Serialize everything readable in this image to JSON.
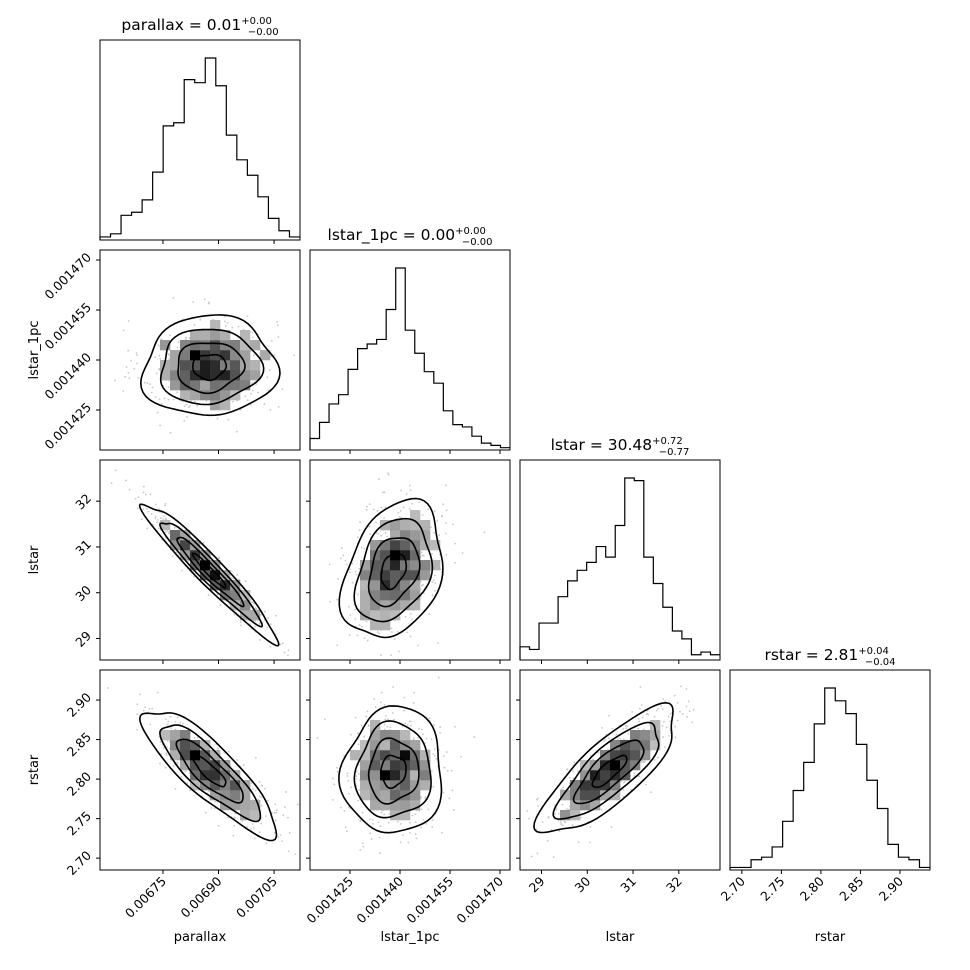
{
  "chart_data": {
    "type": "corner",
    "parameters": [
      {
        "name": "parallax",
        "range": [
          0.00658,
          0.00712
        ]
      },
      {
        "name": "lstar_1pc",
        "range": [
          0.001413,
          0.001473
        ]
      },
      {
        "name": "lstar",
        "range": [
          28.53,
          32.9
        ]
      },
      {
        "name": "rstar",
        "range": [
          2.685,
          2.938
        ]
      }
    ],
    "titles": [
      {
        "label": "parallax",
        "value": "0.01",
        "plus": "+0.00",
        "minus": "−0.00"
      },
      {
        "label": "lstar_1pc",
        "value": "0.00",
        "plus": "+0.00",
        "minus": "−0.00"
      },
      {
        "label": "lstar",
        "value": "30.48",
        "plus": "+0.72",
        "minus": "−0.77"
      },
      {
        "label": "rstar",
        "value": "2.81",
        "plus": "+0.04",
        "minus": "−0.04"
      }
    ],
    "axis_labels": [
      "parallax",
      "lstar_1pc",
      "lstar",
      "rstar"
    ],
    "ticks": [
      {
        "values": [
          0.00675,
          0.0069,
          0.00705
        ],
        "labels": [
          "0.00675",
          "0.00690",
          "0.00705"
        ]
      },
      {
        "values": [
          0.001425,
          0.00144,
          0.001455,
          0.00147
        ],
        "labels": [
          "0.001425",
          "0.001440",
          "0.001455",
          "0.001470"
        ]
      },
      {
        "values": [
          29,
          30,
          31,
          32
        ],
        "labels": [
          "29",
          "30",
          "31",
          "32"
        ]
      },
      {
        "values": [
          2.7,
          2.75,
          2.8,
          2.85,
          2.9
        ],
        "labels": [
          "2.70",
          "2.75",
          "2.80",
          "2.85",
          "2.90"
        ]
      }
    ],
    "histograms": [
      {
        "counts": [
          1,
          2,
          8,
          9,
          13,
          22,
          37,
          38,
          52,
          51,
          59,
          50,
          34,
          26,
          21,
          14,
          7,
          3,
          1
        ]
      },
      {
        "counts": [
          5,
          12,
          20,
          24,
          35,
          44,
          46,
          48,
          61,
          79,
          52,
          42,
          34,
          29,
          17,
          11,
          10,
          6,
          3,
          2,
          1
        ]
      },
      {
        "counts": [
          5,
          4,
          14,
          14,
          24,
          30,
          34,
          37,
          43,
          39,
          51,
          69,
          68,
          39,
          29,
          20,
          11,
          8,
          2,
          3,
          2
        ]
      },
      {
        "counts": [
          1,
          1,
          4,
          5,
          9,
          19,
          31,
          42,
          57,
          71,
          66,
          61,
          49,
          35,
          24,
          10,
          5,
          4,
          1
        ]
      }
    ],
    "correlations": [
      {
        "x": 0,
        "y": 1,
        "rho": 0.05
      },
      {
        "x": 0,
        "y": 2,
        "rho": -0.96
      },
      {
        "x": 1,
        "y": 2,
        "rho": 0.3
      },
      {
        "x": 0,
        "y": 3,
        "rho": -0.85
      },
      {
        "x": 1,
        "y": 3,
        "rho": 0.05
      },
      {
        "x": 2,
        "y": 3,
        "rho": 0.8
      }
    ],
    "center": [
      0.006875,
      0.001438,
      30.48,
      2.81
    ],
    "sigma": [
      9e-05,
      7.5e-06,
      0.75,
      0.04
    ],
    "colors": {
      "line": "#000000",
      "background": "#ffffff"
    }
  }
}
